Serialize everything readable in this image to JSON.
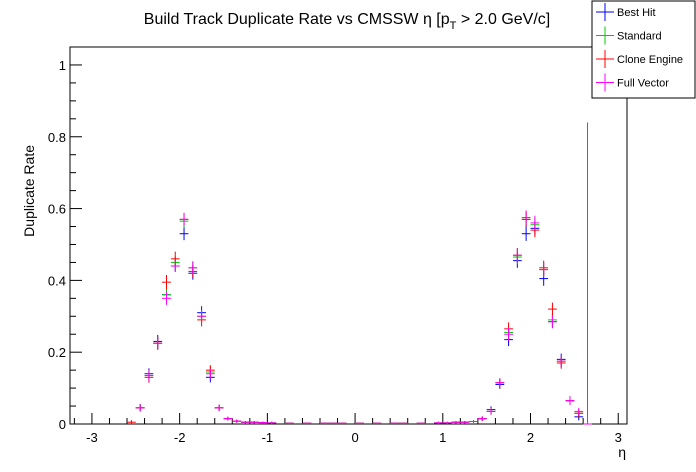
{
  "chart_data": {
    "type": "scatter",
    "title_parts": {
      "main": "Build Track Duplicate Rate vs CMSSW η [p",
      "sub": "T",
      "tail": " > 2.0 GeV/c]"
    },
    "xlabel": "η",
    "ylabel": "Duplicate Rate",
    "xlim": [
      -3.25,
      3.1
    ],
    "ylim": [
      0,
      1.05
    ],
    "xticks": [
      -3,
      -2,
      -1,
      0,
      1,
      2,
      3
    ],
    "yticks": [
      0,
      0.2,
      0.4,
      0.6,
      0.8,
      1
    ],
    "ytick_labels": [
      "0",
      "0.2",
      "0.4",
      "0.6",
      "0.8",
      "1"
    ],
    "legend_position": "top-right",
    "bin_half_width": 0.05,
    "series": [
      {
        "name": "Best Hit",
        "color": "#0000ff",
        "x": [
          -2.45,
          -2.35,
          -2.25,
          -2.15,
          -2.05,
          -1.95,
          -1.85,
          -1.75,
          -1.65,
          -1.55,
          -1.45,
          -1.35,
          -1.25,
          -1.15,
          -1.05,
          -0.95,
          -0.75,
          -0.55,
          -0.35,
          -0.25,
          -0.15,
          0.05,
          0.25,
          0.45,
          0.55,
          0.75,
          0.95,
          1.05,
          1.15,
          1.25,
          1.35,
          1.45,
          1.55,
          1.65,
          1.75,
          1.85,
          1.95,
          2.05,
          2.15,
          2.25,
          2.35,
          2.45,
          2.55
        ],
        "y": [
          0.045,
          0.14,
          0.23,
          0.36,
          0.44,
          0.53,
          0.42,
          0.31,
          0.13,
          0.045,
          0.015,
          0.008,
          0.005,
          0.005,
          0.004,
          0.003,
          0.002,
          0.002,
          0.002,
          0.002,
          0.002,
          0.002,
          0.002,
          0.002,
          0.002,
          0.002,
          0.003,
          0.003,
          0.005,
          0.005,
          0.007,
          0.015,
          0.04,
          0.11,
          0.235,
          0.455,
          0.53,
          0.545,
          0.405,
          0.285,
          0.18,
          0.065,
          0.02
        ],
        "yerr": [
          0.01,
          0.015,
          0.018,
          0.018,
          0.016,
          0.018,
          0.018,
          0.018,
          0.014,
          0.009,
          0.005,
          0.004,
          0.003,
          0.003,
          0.003,
          0.003,
          0.002,
          0.002,
          0.002,
          0.002,
          0.002,
          0.002,
          0.002,
          0.002,
          0.002,
          0.002,
          0.003,
          0.003,
          0.003,
          0.003,
          0.004,
          0.006,
          0.009,
          0.012,
          0.018,
          0.02,
          0.02,
          0.02,
          0.02,
          0.018,
          0.016,
          0.012,
          0.01
        ]
      },
      {
        "name": "Standard",
        "color": "#00cc00",
        "x": [
          -2.45,
          -2.35,
          -2.25,
          -2.15,
          -2.05,
          -1.95,
          -1.85,
          -1.75,
          -1.65,
          -1.55,
          -1.45,
          -1.35,
          -1.25,
          -1.15,
          -1.05,
          -0.95,
          -0.75,
          -0.55,
          -0.35,
          -0.25,
          -0.15,
          0.05,
          0.25,
          0.45,
          0.55,
          0.75,
          0.95,
          1.05,
          1.15,
          1.25,
          1.35,
          1.45,
          1.55,
          1.65,
          1.75,
          1.85,
          1.95,
          2.05,
          2.15,
          2.25,
          2.35,
          2.45,
          2.55
        ],
        "y": [
          0.045,
          0.135,
          0.225,
          0.36,
          0.45,
          0.565,
          0.435,
          0.3,
          0.145,
          0.045,
          0.015,
          0.008,
          0.005,
          0.005,
          0.004,
          0.003,
          0.002,
          0.002,
          0.002,
          0.002,
          0.002,
          0.002,
          0.002,
          0.002,
          0.002,
          0.002,
          0.003,
          0.003,
          0.005,
          0.005,
          0.007,
          0.015,
          0.035,
          0.115,
          0.255,
          0.465,
          0.57,
          0.555,
          0.43,
          0.29,
          0.175,
          0.065,
          0.03
        ],
        "yerr": [
          0.01,
          0.015,
          0.018,
          0.018,
          0.016,
          0.018,
          0.018,
          0.018,
          0.014,
          0.009,
          0.005,
          0.004,
          0.003,
          0.003,
          0.003,
          0.003,
          0.002,
          0.002,
          0.002,
          0.002,
          0.002,
          0.002,
          0.002,
          0.002,
          0.002,
          0.002,
          0.003,
          0.003,
          0.003,
          0.003,
          0.004,
          0.006,
          0.009,
          0.012,
          0.018,
          0.02,
          0.02,
          0.02,
          0.02,
          0.018,
          0.016,
          0.012,
          0.01
        ]
      },
      {
        "name": "Clone Engine",
        "color": "#ff0000",
        "x": [
          -2.55,
          -2.45,
          -2.35,
          -2.25,
          -2.15,
          -2.05,
          -1.95,
          -1.85,
          -1.75,
          -1.65,
          -1.55,
          -1.45,
          -1.35,
          -1.25,
          -1.15,
          -1.05,
          -0.95,
          -0.75,
          -0.55,
          -0.35,
          -0.25,
          -0.15,
          0.05,
          0.25,
          0.45,
          0.55,
          0.75,
          0.95,
          1.05,
          1.15,
          1.25,
          1.35,
          1.45,
          1.55,
          1.65,
          1.75,
          1.85,
          1.95,
          2.05,
          2.15,
          2.25,
          2.35,
          2.45,
          2.55
        ],
        "y": [
          0.005,
          0.045,
          0.13,
          0.225,
          0.395,
          0.46,
          0.57,
          0.425,
          0.29,
          0.15,
          0.045,
          0.015,
          0.008,
          0.005,
          0.005,
          0.004,
          0.003,
          0.002,
          0.002,
          0.002,
          0.002,
          0.002,
          0.002,
          0.002,
          0.002,
          0.002,
          0.002,
          0.003,
          0.003,
          0.005,
          0.005,
          0.007,
          0.015,
          0.035,
          0.115,
          0.265,
          0.47,
          0.57,
          0.54,
          0.435,
          0.32,
          0.17,
          0.065,
          0.03
        ],
        "yerr": [
          0.006,
          0.01,
          0.015,
          0.018,
          0.02,
          0.02,
          0.018,
          0.018,
          0.018,
          0.014,
          0.009,
          0.005,
          0.004,
          0.003,
          0.003,
          0.003,
          0.003,
          0.002,
          0.002,
          0.002,
          0.002,
          0.002,
          0.002,
          0.002,
          0.002,
          0.002,
          0.002,
          0.003,
          0.003,
          0.003,
          0.003,
          0.004,
          0.006,
          0.009,
          0.012,
          0.018,
          0.02,
          0.02,
          0.02,
          0.02,
          0.018,
          0.016,
          0.012,
          0.01
        ]
      },
      {
        "name": "Full Vector",
        "color": "#ff00ff",
        "x": [
          -2.45,
          -2.35,
          -2.25,
          -2.15,
          -2.05,
          -1.95,
          -1.85,
          -1.75,
          -1.65,
          -1.55,
          -1.45,
          -1.35,
          -1.25,
          -1.15,
          -1.05,
          -0.95,
          -0.75,
          -0.55,
          -0.35,
          -0.25,
          -0.15,
          0.05,
          0.25,
          0.45,
          0.55,
          0.75,
          0.95,
          1.05,
          1.15,
          1.25,
          1.35,
          1.45,
          1.55,
          1.65,
          1.75,
          1.85,
          1.95,
          2.05,
          2.15,
          2.25,
          2.35,
          2.45,
          2.55,
          2.65
        ],
        "y": [
          0.045,
          0.135,
          0.225,
          0.35,
          0.44,
          0.57,
          0.435,
          0.3,
          0.14,
          0.045,
          0.015,
          0.008,
          0.005,
          0.005,
          0.004,
          0.003,
          0.002,
          0.002,
          0.002,
          0.002,
          0.002,
          0.002,
          0.002,
          0.002,
          0.002,
          0.002,
          0.003,
          0.003,
          0.005,
          0.005,
          0.007,
          0.015,
          0.035,
          0.115,
          0.25,
          0.47,
          0.575,
          0.56,
          0.43,
          0.285,
          0.175,
          0.065,
          0.035,
          0.0
        ],
        "yerr": [
          0.01,
          0.015,
          0.018,
          0.018,
          0.016,
          0.018,
          0.018,
          0.018,
          0.014,
          0.009,
          0.005,
          0.004,
          0.003,
          0.003,
          0.003,
          0.003,
          0.002,
          0.002,
          0.002,
          0.002,
          0.002,
          0.002,
          0.002,
          0.002,
          0.002,
          0.002,
          0.003,
          0.003,
          0.003,
          0.003,
          0.004,
          0.006,
          0.009,
          0.012,
          0.018,
          0.02,
          0.02,
          0.02,
          0.02,
          0.018,
          0.016,
          0.012,
          0.01,
          0.84
        ]
      }
    ]
  }
}
